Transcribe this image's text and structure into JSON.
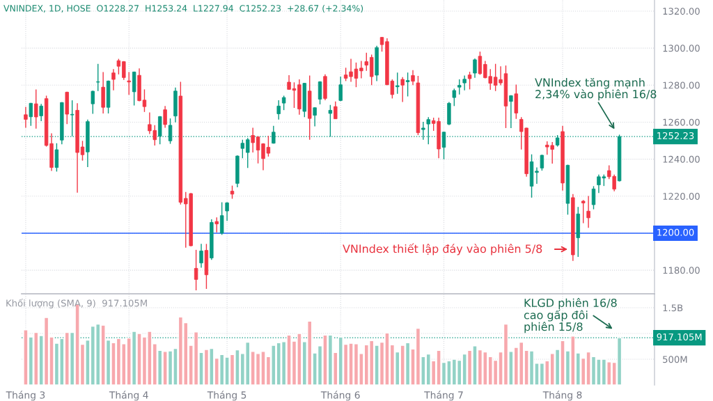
{
  "chart_data": [
    {
      "type": "candlestick",
      "title": "VNINDEX, 1D, HOSE  O1228.27  H1253.24  L1227.94  C1252.23  +28.67 (+2.34%)",
      "categories": [
        null,
        null,
        null,
        null,
        null,
        null,
        null,
        null,
        null,
        null,
        null,
        null,
        null,
        null,
        null,
        null,
        null,
        null,
        null,
        null,
        null,
        null,
        null,
        null,
        null,
        null,
        null,
        null,
        null,
        null,
        null,
        null,
        null,
        null,
        null,
        null,
        null,
        null,
        null,
        null,
        null,
        null,
        null,
        null,
        null,
        null,
        null,
        null,
        null,
        null,
        null,
        null,
        null,
        null,
        null,
        null,
        null,
        null,
        null,
        null,
        null,
        null,
        null,
        null,
        null,
        null,
        null,
        null,
        null,
        null,
        null,
        null,
        null,
        null,
        null,
        null,
        null,
        null,
        null,
        null,
        null,
        null,
        null,
        null,
        null,
        null,
        null,
        null,
        null,
        null,
        null,
        null,
        null,
        null,
        null,
        null,
        null,
        null,
        null,
        null,
        null,
        null,
        null,
        null,
        null,
        null,
        null,
        null,
        null,
        null,
        null,
        null,
        null,
        null,
        null,
        null
      ],
      "ohlc": [
        [
          1264.0,
          1268.3,
          1257.0,
          1261.5
        ],
        [
          1262.9,
          1270.4,
          1258.0,
          1270.2
        ],
        [
          1269.9,
          1277.7,
          1256.5,
          1262.8
        ],
        [
          1263.4,
          1269.9,
          1260.5,
          1268.7
        ],
        [
          1272.7,
          1274.3,
          1246.8,
          1247.4
        ],
        [
          1248.4,
          1254.0,
          1233.6,
          1235.5
        ],
        [
          1235.5,
          1248.6,
          1233.3,
          1245.1
        ],
        [
          1250.3,
          1270.8,
          1248.0,
          1270.6
        ],
        [
          1276.2,
          1276.4,
          1258.9,
          1264.3
        ],
        [
          1263.9,
          1271.8,
          1252.4,
          1264.2
        ],
        [
          1266.4,
          1270.2,
          1221.9,
          1243.6
        ],
        [
          1246.6,
          1249.9,
          1239.2,
          1242.4
        ],
        [
          1243.9,
          1261.4,
          1235.7,
          1260.3
        ],
        [
          1269.9,
          1277.0,
          1264.5,
          1276.7
        ],
        [
          1281.6,
          1291.5,
          1276.8,
          1281.8
        ],
        [
          1278.9,
          1287.1,
          1264.7,
          1268.0
        ],
        [
          1268.0,
          1282.5,
          1264.7,
          1282.2
        ],
        [
          1286.6,
          1288.7,
          1277.2,
          1283.1
        ],
        [
          1293.2,
          1294.2,
          1285.8,
          1290.2
        ],
        [
          1292.7,
          1293.0,
          1282.8,
          1284.1
        ],
        [
          1282.3,
          1287.1,
          1274.7,
          1281.7
        ],
        [
          1276.4,
          1287.3,
          1269.0,
          1287.1
        ],
        [
          1285.3,
          1289.0,
          1271.3,
          1271.6
        ],
        [
          1271.9,
          1277.7,
          1265.5,
          1268.4
        ],
        [
          1258.7,
          1265.2,
          1253.6,
          1255.3
        ],
        [
          1255.5,
          1258.4,
          1247.4,
          1250.5
        ],
        [
          1252.4,
          1263.3,
          1248.0,
          1263.0
        ],
        [
          1266.7,
          1268.7,
          1257.0,
          1258.7
        ],
        [
          1249.9,
          1262.0,
          1248.3,
          1258.3
        ],
        [
          1263.3,
          1278.7,
          1259.9,
          1276.8
        ],
        [
          1274.1,
          1281.8,
          1215.5,
          1216.7
        ],
        [
          1218.8,
          1222.3,
          1192.2,
          1215.8
        ],
        [
          1221.4,
          1221.7,
          1192.9,
          1193.2
        ],
        [
          1181.0,
          1191.0,
          1169.1,
          1175.0
        ],
        [
          1183.9,
          1194.2,
          1181.4,
          1190.4
        ],
        [
          1190.7,
          1194.2,
          1169.9,
          1177.5
        ],
        [
          1186.6,
          1207.5,
          1185.6,
          1205.8
        ],
        [
          1206.3,
          1208.5,
          1200.4,
          1205.0
        ],
        [
          1200.0,
          1216.7,
          1199.1,
          1209.5
        ],
        [
          1212.0,
          1216.7,
          1206.7,
          1216.4
        ],
        [
          1222.7,
          1225.7,
          1218.6,
          1221.1
        ],
        [
          1226.9,
          1242.0,
          1224.8,
          1241.7
        ],
        [
          1245.8,
          1250.5,
          1240.5,
          1248.6
        ],
        [
          1243.6,
          1251.4,
          1235.2,
          1250.5
        ],
        [
          1252.8,
          1257.0,
          1243.6,
          1248.9
        ],
        [
          1252.0,
          1252.4,
          1237.7,
          1244.9
        ],
        [
          1248.3,
          1248.6,
          1234.0,
          1240.3
        ],
        [
          1246.4,
          1252.6,
          1241.4,
          1243.2
        ],
        [
          1248.6,
          1258.0,
          1248.4,
          1254.6
        ],
        [
          1264.5,
          1271.8,
          1261.4,
          1268.7
        ],
        [
          1270.3,
          1274.3,
          1266.5,
          1273.3
        ],
        [
          1281.6,
          1285.4,
          1277.5,
          1277.7
        ],
        [
          1278.1,
          1281.5,
          1267.7,
          1277.2
        ],
        [
          1280.2,
          1283.1,
          1264.0,
          1267.1
        ],
        [
          1265.8,
          1281.2,
          1262.7,
          1281.0
        ],
        [
          1276.8,
          1285.2,
          1250.5,
          1262.0
        ],
        [
          1263.7,
          1268.1,
          1257.7,
          1267.8
        ],
        [
          1272.4,
          1282.1,
          1269.6,
          1281.8
        ],
        [
          1284.7,
          1285.8,
          1271.8,
          1272.8
        ],
        [
          1264.7,
          1269.3,
          1252.1,
          1266.4
        ],
        [
          1268.4,
          1271.2,
          1261.8,
          1261.8
        ],
        [
          1271.7,
          1284.6,
          1271.4,
          1280.2
        ],
        [
          1285.5,
          1289.4,
          1282.2,
          1283.7
        ],
        [
          1287.2,
          1294.2,
          1281.8,
          1284.6
        ],
        [
          1288.7,
          1292.2,
          1278.9,
          1283.7
        ],
        [
          1289.2,
          1293.1,
          1283.7,
          1287.7
        ],
        [
          1292.7,
          1297.5,
          1287.7,
          1290.8
        ],
        [
          1295.0,
          1296.5,
          1280.0,
          1284.6
        ],
        [
          1285.4,
          1301.3,
          1282.2,
          1300.3
        ],
        [
          1305.8,
          1306.0,
          1298.1,
          1301.9
        ],
        [
          1303.5,
          1305.3,
          1280.0,
          1280.2
        ],
        [
          1282.2,
          1283.1,
          1272.8,
          1274.9
        ],
        [
          1279.1,
          1286.8,
          1275.3,
          1279.7
        ],
        [
          1283.1,
          1284.3,
          1270.9,
          1280.0
        ],
        [
          1281.8,
          1286.8,
          1273.9,
          1282.5
        ],
        [
          1285.2,
          1288.1,
          1280.0,
          1282.1
        ],
        [
          1281.2,
          1285.0,
          1253.0,
          1254.3
        ],
        [
          1256.0,
          1260.2,
          1250.5,
          1256.8
        ],
        [
          1259.0,
          1262.7,
          1248.0,
          1261.4
        ],
        [
          1260.8,
          1262.4,
          1255.3,
          1259.3
        ],
        [
          1260.4,
          1262.4,
          1240.5,
          1245.5
        ],
        [
          1246.4,
          1254.9,
          1239.9,
          1254.6
        ],
        [
          1258.9,
          1270.9,
          1258.4,
          1270.2
        ],
        [
          1273.3,
          1278.1,
          1268.7,
          1277.1
        ],
        [
          1278.9,
          1283.1,
          1274.9,
          1279.9
        ],
        [
          1281.2,
          1285.2,
          1277.2,
          1283.2
        ],
        [
          1285.5,
          1287.2,
          1277.7,
          1283.5
        ],
        [
          1286.5,
          1294.4,
          1284.0,
          1293.7
        ],
        [
          1295.6,
          1298.1,
          1285.6,
          1286.2
        ],
        [
          1291.2,
          1293.1,
          1283.7,
          1284.0
        ],
        [
          1284.7,
          1288.7,
          1277.5,
          1281.0
        ],
        [
          1284.3,
          1291.5,
          1276.8,
          1279.9
        ],
        [
          1283.0,
          1290.2,
          1279.9,
          1281.2
        ],
        [
          1286.2,
          1290.6,
          1256.8,
          1268.7
        ],
        [
          1271.2,
          1274.6,
          1256.8,
          1274.3
        ],
        [
          1275.3,
          1280.3,
          1261.8,
          1264.9
        ],
        [
          1261.5,
          1262.7,
          1245.2,
          1254.9
        ],
        [
          1256.8,
          1257.0,
          1230.5,
          1232.1
        ],
        [
          1225.4,
          1242.6,
          1219.2,
          1238.6
        ],
        [
          1232.8,
          1235.5,
          1226.7,
          1233.5
        ],
        [
          1235.2,
          1242.4,
          1233.8,
          1242.1
        ],
        [
          1247.6,
          1249.6,
          1242.4,
          1246.6
        ],
        [
          1247.4,
          1249.3,
          1237.6,
          1245.3
        ],
        [
          1247.6,
          1253.0,
          1246.8,
          1251.5
        ],
        [
          1254.9,
          1258.0,
          1223.0,
          1227.1
        ],
        [
          1216.1,
          1237.0,
          1210.0,
          1236.7
        ],
        [
          1219.2,
          1221.1,
          1185.0,
          1188.3
        ],
        [
          1197.5,
          1214.2,
          1187.2,
          1210.4
        ],
        [
          1217.3,
          1217.9,
          1205.4,
          1216.3
        ],
        [
          1211.9,
          1220.1,
          1202.9,
          1208.3
        ],
        [
          1215.4,
          1225.4,
          1212.9,
          1223.9
        ],
        [
          1226.1,
          1231.7,
          1221.7,
          1230.5
        ],
        [
          1229.8,
          1231.7,
          1225.5,
          1230.5
        ],
        [
          1233.8,
          1236.7,
          1229.2,
          1230.5
        ],
        [
          1230.7,
          1231.7,
          1222.6,
          1223.8
        ],
        [
          1228.27,
          1253.24,
          1227.94,
          1252.23
        ]
      ],
      "colors": [
        "#f23645",
        "#089981",
        "#f23645",
        "#089981",
        "#f23645",
        "#f23645",
        "#089981",
        "#089981",
        "#f23645",
        "#089981",
        "#f23645",
        "#f23645",
        "#089981",
        "#089981",
        "#089981",
        "#f23645",
        "#089981",
        "#f23645",
        "#f23645",
        "#f23645",
        "#f23645",
        "#089981",
        "#f23645",
        "#f23645",
        "#f23645",
        "#f23645",
        "#089981",
        "#f23645",
        "#089981",
        "#089981",
        "#f23645",
        "#f23645",
        "#f23645",
        "#f23645",
        "#089981",
        "#f23645",
        "#089981",
        "#f23645",
        "#089981",
        "#089981",
        "#f23645",
        "#089981",
        "#089981",
        "#089981",
        "#f23645",
        "#f23645",
        "#f23645",
        "#f23645",
        "#089981",
        "#089981",
        "#089981",
        "#f23645",
        "#f23645",
        "#f23645",
        "#089981",
        "#f23645",
        "#089981",
        "#089981",
        "#f23645",
        "#089981",
        "#f23645",
        "#089981",
        "#f23645",
        "#f23645",
        "#f23645",
        "#f23645",
        "#f23645",
        "#f23645",
        "#089981",
        "#f23645",
        "#f23645",
        "#f23645",
        "#089981",
        "#f23645",
        "#089981",
        "#f23645",
        "#f23645",
        "#089981",
        "#089981",
        "#f23645",
        "#f23645",
        "#089981",
        "#089981",
        "#089981",
        "#089981",
        "#089981",
        "#f23645",
        "#089981",
        "#f23645",
        "#f23645",
        "#f23645",
        "#f23645",
        "#f23645",
        "#f23645",
        "#089981",
        "#f23645",
        "#f23645",
        "#f23645",
        "#089981",
        "#089981",
        "#089981",
        "#f23645",
        "#f23645",
        "#089981",
        "#f23645",
        "#089981",
        "#f23645",
        "#089981",
        "#f23645",
        "#f23645",
        "#089981",
        "#089981",
        "#089981",
        "#f23645",
        "#f23645",
        "#089981"
      ],
      "ylim": [
        1168,
        1326
      ],
      "yticks": [
        {
          "value": 1180,
          "label": "1180.00"
        },
        {
          "value": 1200,
          "label": null
        },
        {
          "value": 1220,
          "label": "1220.00"
        },
        {
          "value": 1240,
          "label": "1240.00"
        },
        {
          "value": 1260,
          "label": "1260.00"
        },
        {
          "value": 1280,
          "label": "1280.00"
        },
        {
          "value": 1300,
          "label": "1300.00"
        },
        {
          "value": 1320,
          "label": "1320.00"
        }
      ],
      "ref_lines": [
        {
          "axis": "y",
          "value": 1200,
          "label": "1200.00",
          "color": "#2962ff",
          "line_style": "solid"
        },
        {
          "axis": "y",
          "value": 1252.23,
          "label": "1252.23",
          "color": "#089981",
          "line_style": "dotted"
        }
      ],
      "annotations": [
        "VNIndex tăng mạnh\n2,34% vào phiên 16/8",
        "VNIndex thiết lập đáy vào phiên 5/8"
      ],
      "grid": true,
      "tick_labels": "y"
    },
    {
      "type": "bar",
      "categories": [
        "Tháng 3",
        null,
        null,
        null,
        null,
        null,
        null,
        null,
        null,
        null,
        null,
        null,
        null,
        null,
        null,
        null,
        null,
        null,
        null,
        null,
        "Tháng 4",
        null,
        null,
        null,
        null,
        null,
        null,
        null,
        null,
        null,
        null,
        null,
        null,
        null,
        null,
        null,
        null,
        null,
        null,
        "Tháng 5",
        null,
        null,
        null,
        null,
        null,
        null,
        null,
        null,
        null,
        null,
        null,
        null,
        null,
        null,
        null,
        null,
        null,
        null,
        null,
        null,
        null,
        "Tháng 6",
        null,
        null,
        null,
        null,
        null,
        null,
        null,
        null,
        null,
        null,
        null,
        null,
        null,
        null,
        null,
        null,
        null,
        null,
        null,
        "Tháng 7",
        null,
        null,
        null,
        null,
        null,
        null,
        null,
        null,
        null,
        null,
        null,
        null,
        null,
        null,
        null,
        null,
        null,
        null,
        null,
        null,
        null,
        null,
        "Tháng 8",
        null,
        null,
        null,
        null,
        null,
        null,
        null,
        null,
        null,
        null,
        null
      ],
      "values": [
        1070000000,
        930000000,
        1020000000,
        960000000,
        1310000000,
        930000000,
        810000000,
        900000000,
        1020000000,
        1020000000,
        1570000000,
        790000000,
        870000000,
        1140000000,
        1180000000,
        1160000000,
        870000000,
        820000000,
        900000000,
        800000000,
        910000000,
        1040000000,
        1000000000,
        930000000,
        1040000000,
        800000000,
        670000000,
        650000000,
        660000000,
        710000000,
        1320000000,
        1210000000,
        770000000,
        1030000000,
        630000000,
        690000000,
        710000000,
        520000000,
        590000000,
        540000000,
        590000000,
        680000000,
        610000000,
        830000000,
        650000000,
        610000000,
        650000000,
        550000000,
        770000000,
        820000000,
        840000000,
        970000000,
        850000000,
        1000000000,
        840000000,
        1240000000,
        620000000,
        760000000,
        970000000,
        970000000,
        630000000,
        930000000,
        790000000,
        810000000,
        800000000,
        610000000,
        780000000,
        860000000,
        770000000,
        830000000,
        1010000000,
        780000000,
        640000000,
        770000000,
        820000000,
        700000000,
        1100000000,
        550000000,
        600000000,
        470000000,
        670000000,
        440000000,
        470000000,
        500000000,
        480000000,
        600000000,
        670000000,
        760000000,
        680000000,
        640000000,
        550000000,
        480000000,
        640000000,
        1180000000,
        650000000,
        730000000,
        830000000,
        670000000,
        660000000,
        420000000,
        420000000,
        470000000,
        610000000,
        690000000,
        860000000,
        660000000,
        950000000,
        620000000,
        520000000,
        640000000,
        550000000,
        500000000,
        500000000,
        450000000,
        440000000,
        917105000
      ],
      "colors": [
        "#f7a8ad",
        "#92d2c6",
        "#f7a8ad",
        "#92d2c6",
        "#f7a8ad",
        "#f7a8ad",
        "#92d2c6",
        "#92d2c6",
        "#f7a8ad",
        "#92d2c6",
        "#f7a8ad",
        "#f7a8ad",
        "#92d2c6",
        "#92d2c6",
        "#92d2c6",
        "#f7a8ad",
        "#92d2c6",
        "#f7a8ad",
        "#f7a8ad",
        "#f7a8ad",
        "#f7a8ad",
        "#92d2c6",
        "#f7a8ad",
        "#f7a8ad",
        "#f7a8ad",
        "#f7a8ad",
        "#92d2c6",
        "#f7a8ad",
        "#92d2c6",
        "#92d2c6",
        "#f7a8ad",
        "#f7a8ad",
        "#f7a8ad",
        "#f7a8ad",
        "#92d2c6",
        "#f7a8ad",
        "#92d2c6",
        "#f7a8ad",
        "#92d2c6",
        "#92d2c6",
        "#f7a8ad",
        "#92d2c6",
        "#92d2c6",
        "#92d2c6",
        "#f7a8ad",
        "#f7a8ad",
        "#f7a8ad",
        "#f7a8ad",
        "#92d2c6",
        "#92d2c6",
        "#92d2c6",
        "#f7a8ad",
        "#f7a8ad",
        "#f7a8ad",
        "#92d2c6",
        "#f7a8ad",
        "#92d2c6",
        "#92d2c6",
        "#f7a8ad",
        "#92d2c6",
        "#f7a8ad",
        "#92d2c6",
        "#f7a8ad",
        "#f7a8ad",
        "#f7a8ad",
        "#f7a8ad",
        "#f7a8ad",
        "#f7a8ad",
        "#92d2c6",
        "#f7a8ad",
        "#f7a8ad",
        "#f7a8ad",
        "#92d2c6",
        "#f7a8ad",
        "#92d2c6",
        "#f7a8ad",
        "#f7a8ad",
        "#92d2c6",
        "#92d2c6",
        "#f7a8ad",
        "#f7a8ad",
        "#92d2c6",
        "#92d2c6",
        "#92d2c6",
        "#92d2c6",
        "#92d2c6",
        "#f7a8ad",
        "#92d2c6",
        "#f7a8ad",
        "#f7a8ad",
        "#f7a8ad",
        "#f7a8ad",
        "#f7a8ad",
        "#f7a8ad",
        "#92d2c6",
        "#f7a8ad",
        "#f7a8ad",
        "#f7a8ad",
        "#92d2c6",
        "#92d2c6",
        "#92d2c6",
        "#f7a8ad",
        "#f7a8ad",
        "#92d2c6",
        "#f7a8ad",
        "#92d2c6",
        "#f7a8ad",
        "#92d2c6",
        "#f7a8ad",
        "#f7a8ad",
        "#92d2c6",
        "#92d2c6",
        "#92d2c6",
        "#f7a8ad",
        "#f7a8ad",
        "#92d2c6"
      ],
      "ylim": [
        0,
        1770000000
      ],
      "yticks": [
        {
          "value": 500000000,
          "label": "500M"
        },
        {
          "value": 1000000000,
          "label": null
        },
        {
          "value": 1500000000,
          "label": "1.5B"
        }
      ],
      "ref_lines": [
        {
          "axis": "y",
          "value": 917105000,
          "label": "917.105M",
          "color": "#089981",
          "line_style": "dotted"
        }
      ],
      "annotations": [
        "Khối lượng (SMA, 9)  917.105M",
        "KLGD phiên 16/8\ncao gấp đôi\nphiên 15/8"
      ],
      "grid": true
    }
  ]
}
